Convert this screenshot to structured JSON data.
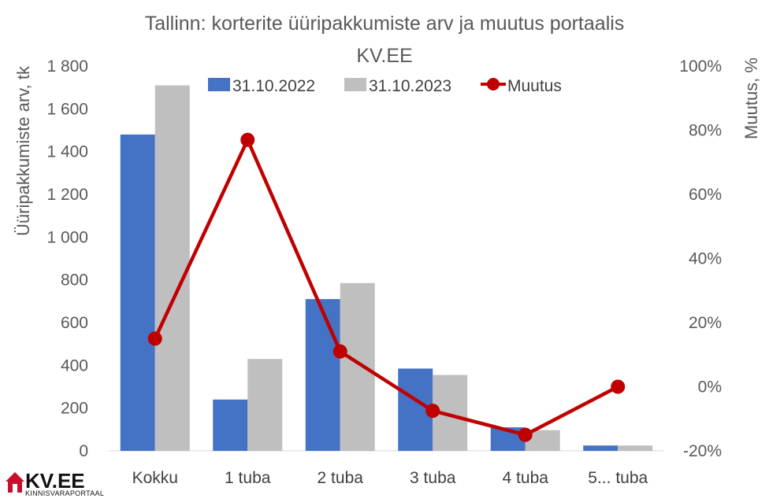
{
  "chart_data": {
    "type": "bar",
    "title_line1": "Tallinn: korterite üüripakkumiste arv ja muutus portaalis",
    "title_line2": "KV.EE",
    "ylabel": "Üüripakkumiste arv, tk",
    "y2label": "Muutus, %",
    "ylim": [
      0,
      1800
    ],
    "y2lim": [
      -20,
      100
    ],
    "yticks": [
      "0",
      "200",
      "400",
      "600",
      "800",
      "1 000",
      "1 200",
      "1 400",
      "1 600",
      "1 800"
    ],
    "y2ticks": [
      "-20%",
      "0%",
      "20%",
      "40%",
      "60%",
      "80%",
      "100%"
    ],
    "categories": [
      "Kokku",
      "1 tuba",
      "2 tuba",
      "3 tuba",
      "4 tuba",
      "5... tuba"
    ],
    "series": [
      {
        "name": "31.10.2022",
        "type": "bar",
        "color": "#4472c4",
        "values": [
          1480,
          240,
          710,
          385,
          110,
          25
        ]
      },
      {
        "name": "31.10.2023",
        "type": "bar",
        "color": "#bfbfbf",
        "values": [
          1710,
          430,
          785,
          355,
          97,
          25
        ]
      },
      {
        "name": "Muutus",
        "type": "line",
        "axis": "right",
        "color": "#c00000",
        "values": [
          15,
          77,
          11,
          -7.5,
          -15,
          0
        ]
      }
    ],
    "grid": false,
    "legend_position": "top-center"
  },
  "logo": {
    "brand": "KV.EE",
    "sub": "KINNISVARAPORTAAL"
  }
}
